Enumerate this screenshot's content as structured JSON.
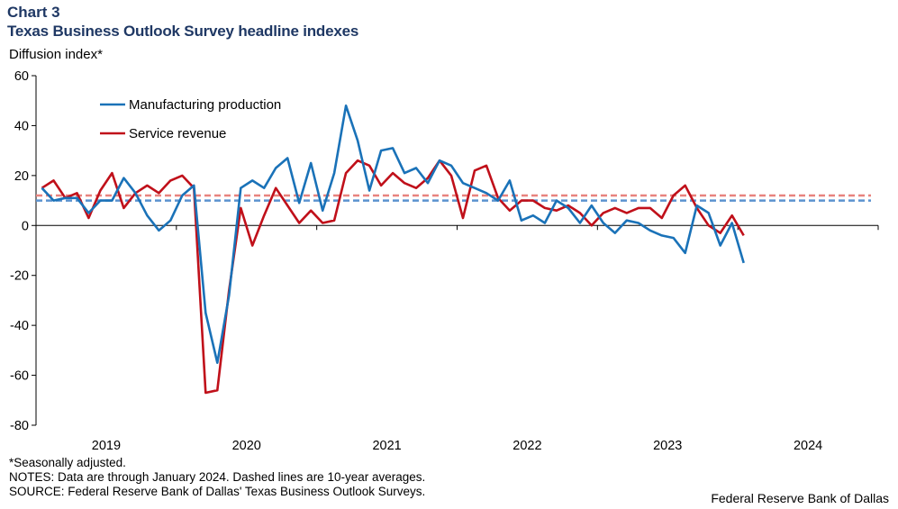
{
  "header": {
    "chart_number": "Chart 3",
    "title": "Texas Business Outlook Survey headline indexes",
    "y_axis_label": "Diffusion index*"
  },
  "footer": {
    "note1": "*Seasonally adjusted.",
    "note2": "NOTES: Data are through January 2024. Dashed lines are 10-year averages.",
    "note3": "SOURCE: Federal Reserve Bank of Dallas' Texas Business Outlook Surveys.",
    "credit": "Federal Reserve Bank of Dallas"
  },
  "chart_data": {
    "type": "line",
    "title": "Texas Business Outlook Survey headline indexes",
    "ylabel": "Diffusion index*",
    "xlabel": "",
    "ylim": [
      -80,
      60
    ],
    "yticks": [
      60,
      40,
      20,
      0,
      -20,
      -40,
      -60,
      -80
    ],
    "xlim_months": [
      0,
      72
    ],
    "year_labels": [
      {
        "label": "2019",
        "month_index": 6
      },
      {
        "label": "2020",
        "month_index": 18
      },
      {
        "label": "2021",
        "month_index": 30
      },
      {
        "label": "2022",
        "month_index": 42
      },
      {
        "label": "2023",
        "month_index": 54
      },
      {
        "label": "2024",
        "month_index": 66
      }
    ],
    "x_start": "2018-07",
    "legend_position": "top-left",
    "series": [
      {
        "name": "Manufacturing production",
        "color": "#1a72b8",
        "values": [
          15,
          10,
          11,
          11,
          5,
          10,
          10,
          19,
          13,
          4,
          -2,
          2,
          12,
          16,
          -35,
          -55,
          -28,
          15,
          18,
          15,
          23,
          27,
          9,
          25,
          6,
          21,
          48,
          34,
          14,
          30,
          31,
          21,
          23,
          17,
          26,
          24,
          17,
          15,
          13,
          10,
          18,
          2,
          4,
          1,
          10,
          7,
          1,
          8,
          1,
          -3,
          2,
          1,
          -2,
          -4,
          -5,
          -11,
          8,
          5,
          -8,
          1,
          -15
        ],
        "average": 10
      },
      {
        "name": "Service revenue",
        "color": "#c0101a",
        "values": [
          15,
          18,
          11,
          13,
          3,
          14,
          21,
          7,
          13,
          16,
          13,
          18,
          20,
          15,
          -67,
          -66,
          -26,
          7,
          -8,
          4,
          15,
          8,
          1,
          6,
          1,
          2,
          21,
          26,
          24,
          16,
          21,
          17,
          15,
          19,
          26,
          20,
          3,
          22,
          24,
          11,
          6,
          10,
          10,
          7,
          6,
          8,
          5,
          0,
          5,
          7,
          5,
          7,
          7,
          3,
          12,
          16,
          7,
          0,
          -3,
          4,
          -4
        ],
        "average": 12
      }
    ]
  }
}
